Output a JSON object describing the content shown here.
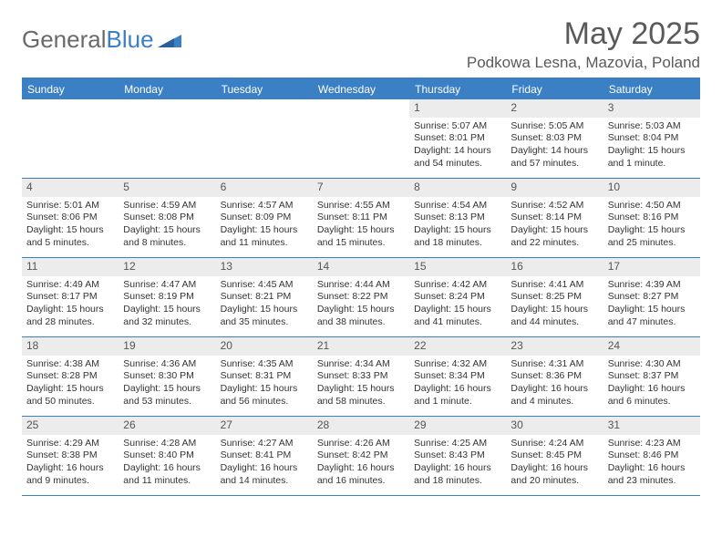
{
  "logo": {
    "text1": "General",
    "text2": "Blue"
  },
  "title": "May 2025",
  "location": "Podkowa Lesna, Mazovia, Poland",
  "colors": {
    "accent": "#3b7fc4",
    "header_text": "#5a5a5a",
    "day_num_bg": "#ececec"
  },
  "weekdays": [
    "Sunday",
    "Monday",
    "Tuesday",
    "Wednesday",
    "Thursday",
    "Friday",
    "Saturday"
  ],
  "weeks": [
    [
      {
        "n": "",
        "sr": "",
        "ss": "",
        "dl": ""
      },
      {
        "n": "",
        "sr": "",
        "ss": "",
        "dl": ""
      },
      {
        "n": "",
        "sr": "",
        "ss": "",
        "dl": ""
      },
      {
        "n": "",
        "sr": "",
        "ss": "",
        "dl": ""
      },
      {
        "n": "1",
        "sr": "Sunrise: 5:07 AM",
        "ss": "Sunset: 8:01 PM",
        "dl": "Daylight: 14 hours and 54 minutes."
      },
      {
        "n": "2",
        "sr": "Sunrise: 5:05 AM",
        "ss": "Sunset: 8:03 PM",
        "dl": "Daylight: 14 hours and 57 minutes."
      },
      {
        "n": "3",
        "sr": "Sunrise: 5:03 AM",
        "ss": "Sunset: 8:04 PM",
        "dl": "Daylight: 15 hours and 1 minute."
      }
    ],
    [
      {
        "n": "4",
        "sr": "Sunrise: 5:01 AM",
        "ss": "Sunset: 8:06 PM",
        "dl": "Daylight: 15 hours and 5 minutes."
      },
      {
        "n": "5",
        "sr": "Sunrise: 4:59 AM",
        "ss": "Sunset: 8:08 PM",
        "dl": "Daylight: 15 hours and 8 minutes."
      },
      {
        "n": "6",
        "sr": "Sunrise: 4:57 AM",
        "ss": "Sunset: 8:09 PM",
        "dl": "Daylight: 15 hours and 11 minutes."
      },
      {
        "n": "7",
        "sr": "Sunrise: 4:55 AM",
        "ss": "Sunset: 8:11 PM",
        "dl": "Daylight: 15 hours and 15 minutes."
      },
      {
        "n": "8",
        "sr": "Sunrise: 4:54 AM",
        "ss": "Sunset: 8:13 PM",
        "dl": "Daylight: 15 hours and 18 minutes."
      },
      {
        "n": "9",
        "sr": "Sunrise: 4:52 AM",
        "ss": "Sunset: 8:14 PM",
        "dl": "Daylight: 15 hours and 22 minutes."
      },
      {
        "n": "10",
        "sr": "Sunrise: 4:50 AM",
        "ss": "Sunset: 8:16 PM",
        "dl": "Daylight: 15 hours and 25 minutes."
      }
    ],
    [
      {
        "n": "11",
        "sr": "Sunrise: 4:49 AM",
        "ss": "Sunset: 8:17 PM",
        "dl": "Daylight: 15 hours and 28 minutes."
      },
      {
        "n": "12",
        "sr": "Sunrise: 4:47 AM",
        "ss": "Sunset: 8:19 PM",
        "dl": "Daylight: 15 hours and 32 minutes."
      },
      {
        "n": "13",
        "sr": "Sunrise: 4:45 AM",
        "ss": "Sunset: 8:21 PM",
        "dl": "Daylight: 15 hours and 35 minutes."
      },
      {
        "n": "14",
        "sr": "Sunrise: 4:44 AM",
        "ss": "Sunset: 8:22 PM",
        "dl": "Daylight: 15 hours and 38 minutes."
      },
      {
        "n": "15",
        "sr": "Sunrise: 4:42 AM",
        "ss": "Sunset: 8:24 PM",
        "dl": "Daylight: 15 hours and 41 minutes."
      },
      {
        "n": "16",
        "sr": "Sunrise: 4:41 AM",
        "ss": "Sunset: 8:25 PM",
        "dl": "Daylight: 15 hours and 44 minutes."
      },
      {
        "n": "17",
        "sr": "Sunrise: 4:39 AM",
        "ss": "Sunset: 8:27 PM",
        "dl": "Daylight: 15 hours and 47 minutes."
      }
    ],
    [
      {
        "n": "18",
        "sr": "Sunrise: 4:38 AM",
        "ss": "Sunset: 8:28 PM",
        "dl": "Daylight: 15 hours and 50 minutes."
      },
      {
        "n": "19",
        "sr": "Sunrise: 4:36 AM",
        "ss": "Sunset: 8:30 PM",
        "dl": "Daylight: 15 hours and 53 minutes."
      },
      {
        "n": "20",
        "sr": "Sunrise: 4:35 AM",
        "ss": "Sunset: 8:31 PM",
        "dl": "Daylight: 15 hours and 56 minutes."
      },
      {
        "n": "21",
        "sr": "Sunrise: 4:34 AM",
        "ss": "Sunset: 8:33 PM",
        "dl": "Daylight: 15 hours and 58 minutes."
      },
      {
        "n": "22",
        "sr": "Sunrise: 4:32 AM",
        "ss": "Sunset: 8:34 PM",
        "dl": "Daylight: 16 hours and 1 minute."
      },
      {
        "n": "23",
        "sr": "Sunrise: 4:31 AM",
        "ss": "Sunset: 8:36 PM",
        "dl": "Daylight: 16 hours and 4 minutes."
      },
      {
        "n": "24",
        "sr": "Sunrise: 4:30 AM",
        "ss": "Sunset: 8:37 PM",
        "dl": "Daylight: 16 hours and 6 minutes."
      }
    ],
    [
      {
        "n": "25",
        "sr": "Sunrise: 4:29 AM",
        "ss": "Sunset: 8:38 PM",
        "dl": "Daylight: 16 hours and 9 minutes."
      },
      {
        "n": "26",
        "sr": "Sunrise: 4:28 AM",
        "ss": "Sunset: 8:40 PM",
        "dl": "Daylight: 16 hours and 11 minutes."
      },
      {
        "n": "27",
        "sr": "Sunrise: 4:27 AM",
        "ss": "Sunset: 8:41 PM",
        "dl": "Daylight: 16 hours and 14 minutes."
      },
      {
        "n": "28",
        "sr": "Sunrise: 4:26 AM",
        "ss": "Sunset: 8:42 PM",
        "dl": "Daylight: 16 hours and 16 minutes."
      },
      {
        "n": "29",
        "sr": "Sunrise: 4:25 AM",
        "ss": "Sunset: 8:43 PM",
        "dl": "Daylight: 16 hours and 18 minutes."
      },
      {
        "n": "30",
        "sr": "Sunrise: 4:24 AM",
        "ss": "Sunset: 8:45 PM",
        "dl": "Daylight: 16 hours and 20 minutes."
      },
      {
        "n": "31",
        "sr": "Sunrise: 4:23 AM",
        "ss": "Sunset: 8:46 PM",
        "dl": "Daylight: 16 hours and 23 minutes."
      }
    ]
  ]
}
